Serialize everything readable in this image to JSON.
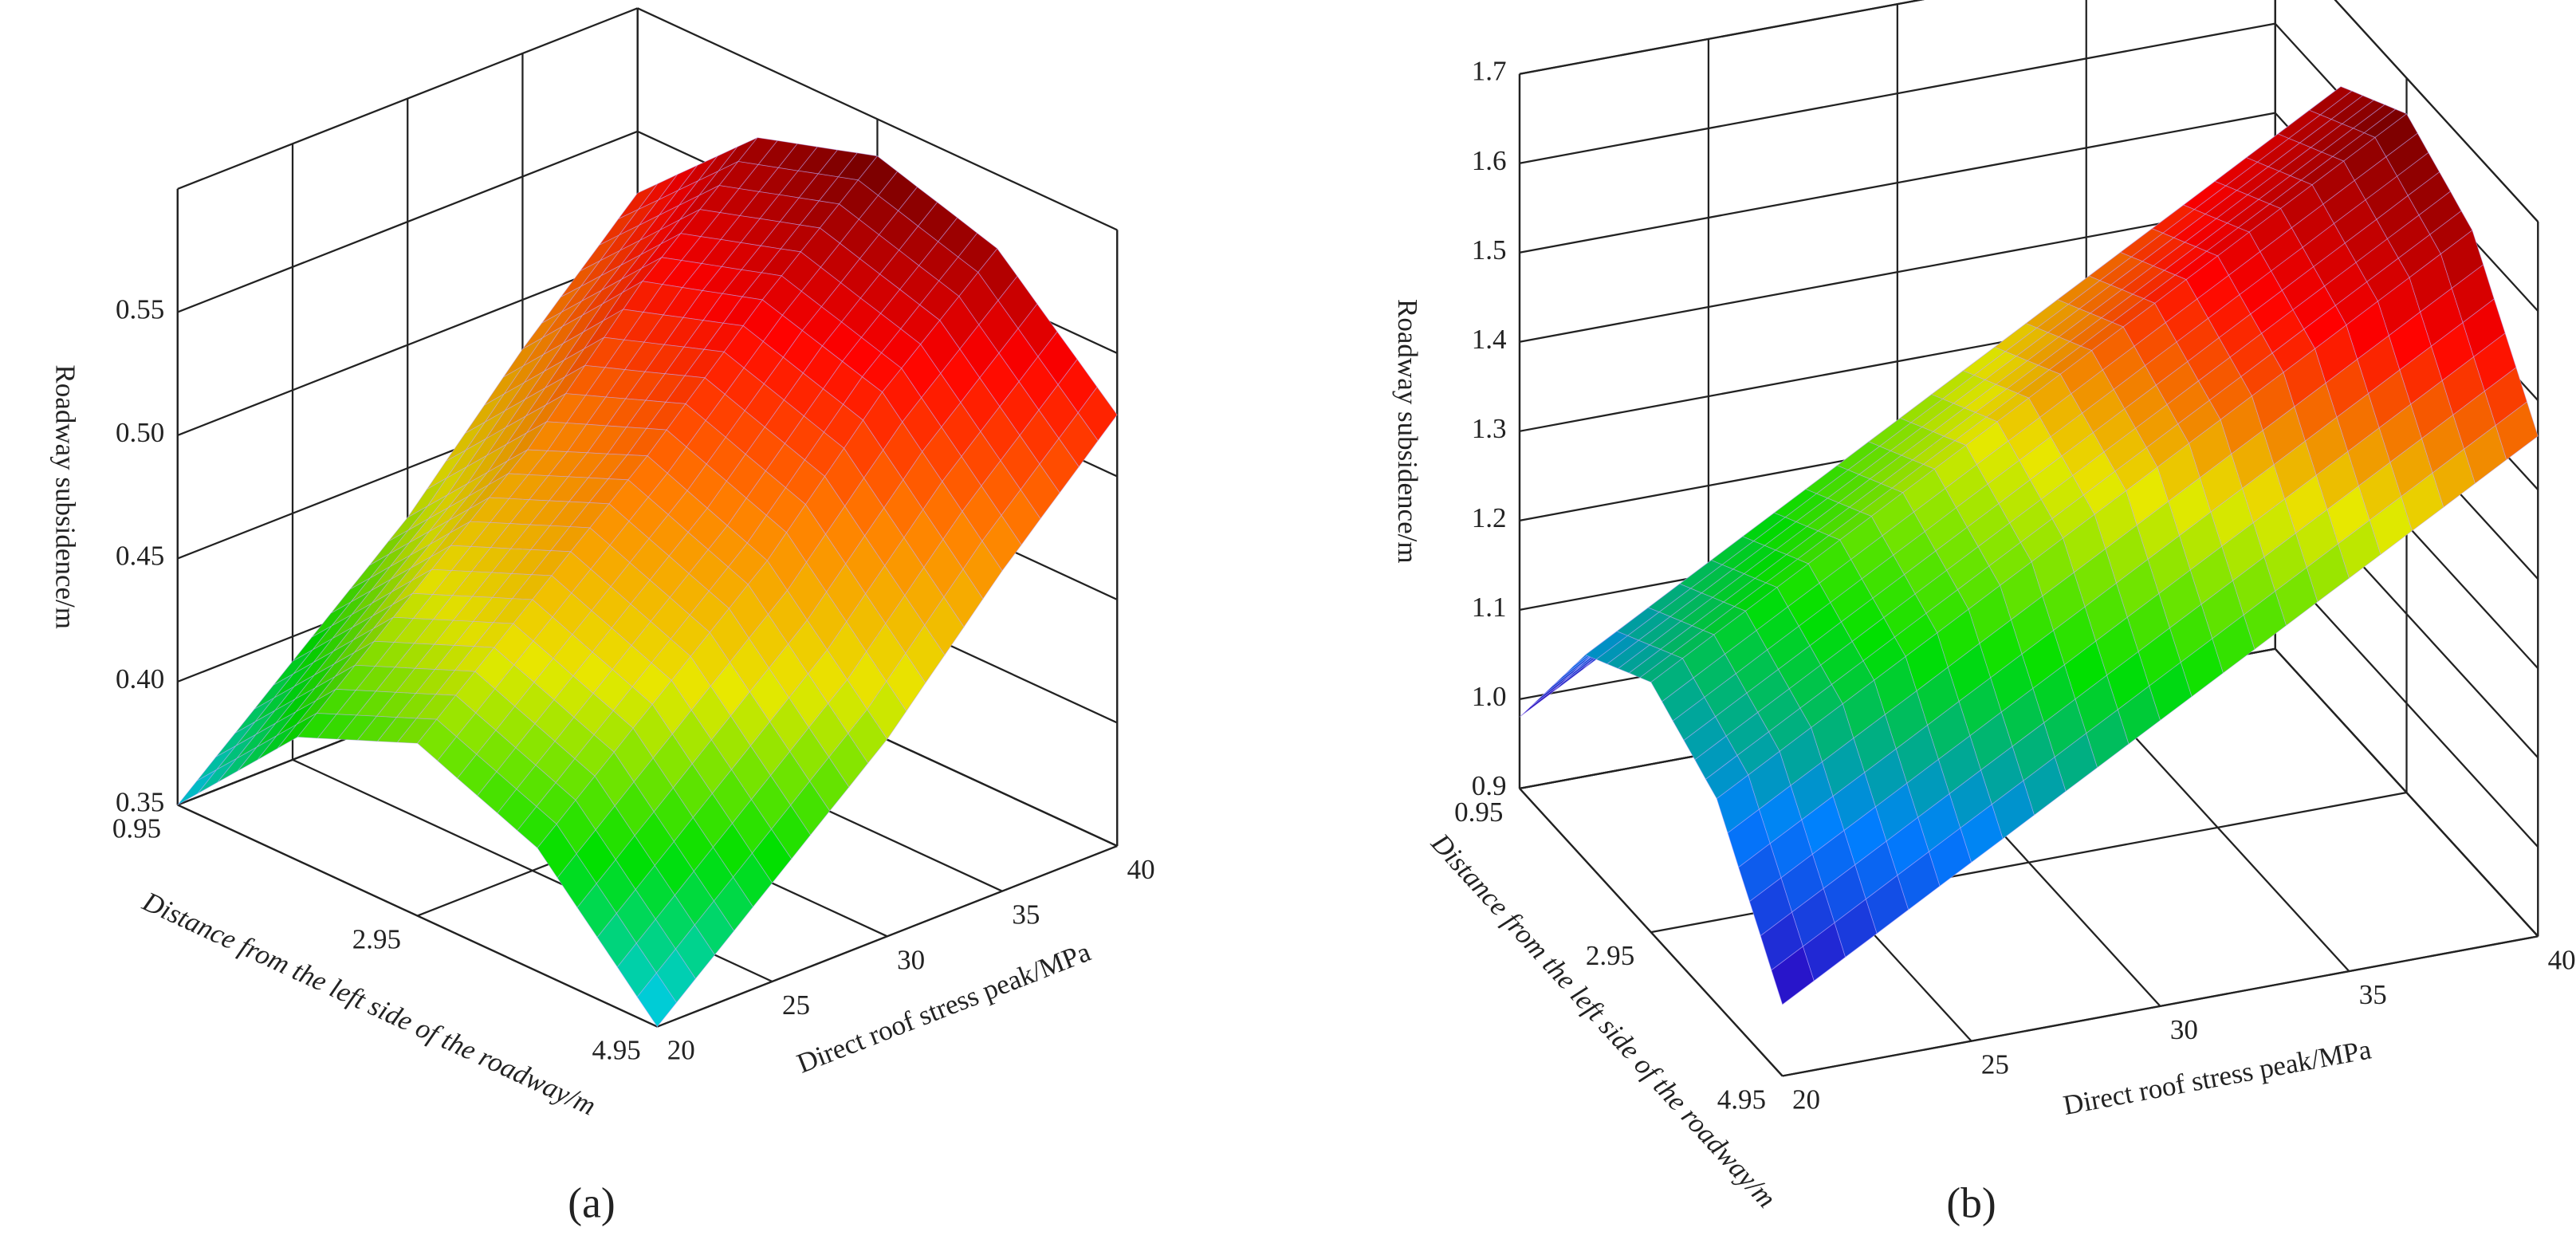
{
  "chart_data": [
    {
      "type": "surface",
      "panel_label": "(a)",
      "xlabel": "Distance from the left side of the roadway/m",
      "ylabel": "Direct roof stress peak/MPa",
      "zlabel": "Roadway subsidence/m",
      "x": [
        0.95,
        1.95,
        2.95,
        3.95,
        4.95
      ],
      "y": [
        20,
        25,
        30,
        35,
        40
      ],
      "z": [
        [
          0.35,
          0.4,
          0.42,
          0.4,
          0.35
        ],
        [
          0.39,
          0.44,
          0.46,
          0.44,
          0.39
        ],
        [
          0.43,
          0.48,
          0.5,
          0.48,
          0.43
        ],
        [
          0.48,
          0.53,
          0.545,
          0.53,
          0.48
        ],
        [
          0.525,
          0.57,
          0.585,
          0.57,
          0.525
        ]
      ],
      "xlim": [
        0.95,
        4.95
      ],
      "ylim": [
        20,
        40
      ],
      "zlim": [
        0.35,
        0.6
      ],
      "xticks": [
        0.95,
        2.95,
        4.95
      ],
      "yticks": [
        20,
        25,
        30,
        35,
        40
      ],
      "zticks": [
        0.35,
        {
          "value": 0.4,
          "label": "0.40"
        },
        0.45,
        {
          "value": 0.5,
          "label": "0.50"
        },
        0.55
      ],
      "colormap": [
        "#00c8ff",
        "#00e000",
        "#e8e800",
        "#ff8000",
        "#ff0000",
        "#700000"
      ],
      "grid": true
    },
    {
      "type": "surface",
      "panel_label": "(b)",
      "xlabel": "Distance from the left side of the roadway/m",
      "ylabel": "Direct roof stress peak/MPa",
      "zlabel": "Roadway subsidence/m",
      "x": [
        0.95,
        1.95,
        2.95,
        3.95,
        4.95
      ],
      "y": [
        20,
        25,
        30,
        35,
        40
      ],
      "z": [
        [
          0.98,
          1.13,
          1.18,
          1.13,
          0.98
        ],
        [
          1.1,
          1.25,
          1.3,
          1.25,
          1.1
        ],
        [
          1.22,
          1.37,
          1.42,
          1.37,
          1.22
        ],
        [
          1.34,
          1.49,
          1.54,
          1.49,
          1.34
        ],
        [
          1.46,
          1.61,
          1.66,
          1.61,
          1.46
        ]
      ],
      "xlim": [
        0.95,
        4.95
      ],
      "ylim": [
        20,
        40
      ],
      "zlim": [
        0.9,
        1.7
      ],
      "xticks": [
        0.95,
        2.95,
        4.95
      ],
      "yticks": [
        20,
        25,
        30,
        35,
        40
      ],
      "zticks": [
        0.9,
        {
          "value": 1,
          "label": "1.0"
        },
        1.1,
        1.2,
        1.3,
        1.4,
        1.5,
        1.6,
        1.7
      ],
      "colormap": [
        "#3000c0",
        "#0080ff",
        "#00e000",
        "#e8e800",
        "#ff0000",
        "#700000"
      ],
      "grid": true
    }
  ]
}
